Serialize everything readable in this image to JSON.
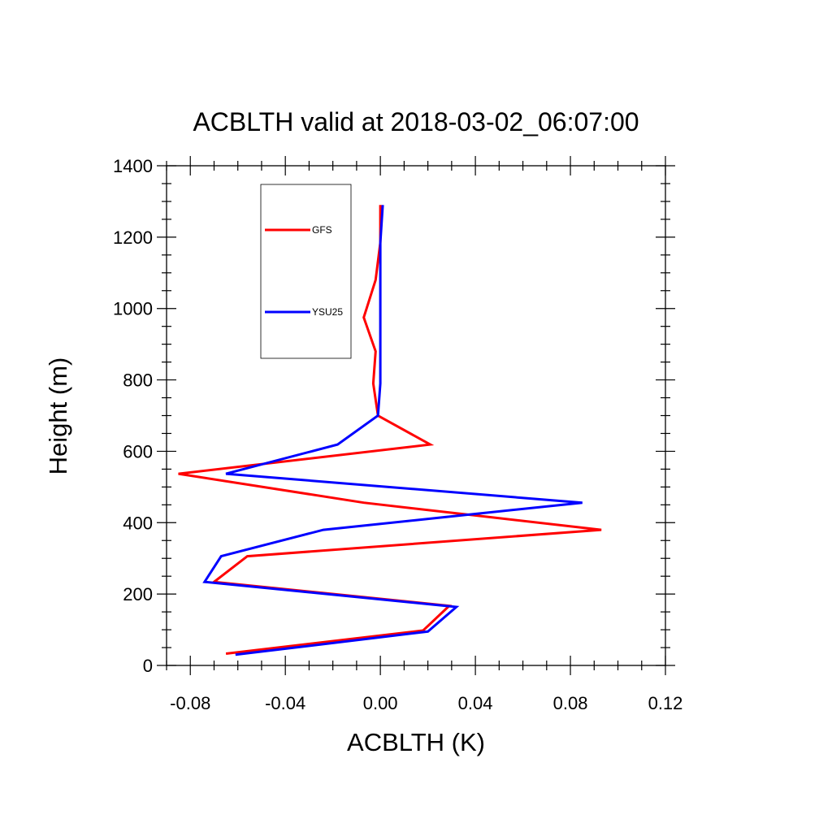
{
  "chart_data": {
    "type": "line",
    "title": "ACBLTH valid at 2018-03-02_06:07:00",
    "xlabel": "ACBLTH (K)",
    "ylabel": "Height (m)",
    "xlim": [
      -0.09,
      0.12
    ],
    "ylim": [
      0,
      1400
    ],
    "x_ticks": [
      -0.08,
      -0.04,
      0.0,
      0.04,
      0.08,
      0.12
    ],
    "x_tick_labels": [
      "-0.08",
      "-0.04",
      "0.00",
      "0.04",
      "0.08",
      "0.12"
    ],
    "y_ticks": [
      0,
      200,
      400,
      600,
      800,
      1000,
      1200,
      1400
    ],
    "y_tick_labels": [
      "0",
      "200",
      "400",
      "600",
      "800",
      "1000",
      "1200",
      "1400"
    ],
    "grid": false,
    "legend_position": "top-left",
    "series": [
      {
        "name": "GFS",
        "color": "#ff0000",
        "points": [
          {
            "x": -0.065,
            "y": 33
          },
          {
            "x": 0.018,
            "y": 98
          },
          {
            "x": 0.029,
            "y": 167
          },
          {
            "x": -0.07,
            "y": 234
          },
          {
            "x": -0.056,
            "y": 306
          },
          {
            "x": 0.093,
            "y": 380
          },
          {
            "x": -0.007,
            "y": 456
          },
          {
            "x": -0.085,
            "y": 537
          },
          {
            "x": 0.021,
            "y": 619
          },
          {
            "x": -0.001,
            "y": 700
          },
          {
            "x": -0.003,
            "y": 790
          },
          {
            "x": -0.002,
            "y": 880
          },
          {
            "x": -0.007,
            "y": 975
          },
          {
            "x": -0.002,
            "y": 1080
          },
          {
            "x": 0.0,
            "y": 1185
          },
          {
            "x": 0.0,
            "y": 1290
          }
        ]
      },
      {
        "name": "YSU25",
        "color": "#0000ff",
        "points": [
          {
            "x": -0.061,
            "y": 30
          },
          {
            "x": 0.02,
            "y": 95
          },
          {
            "x": 0.032,
            "y": 164
          },
          {
            "x": -0.074,
            "y": 234
          },
          {
            "x": -0.067,
            "y": 306
          },
          {
            "x": -0.024,
            "y": 380
          },
          {
            "x": 0.085,
            "y": 456
          },
          {
            "x": -0.065,
            "y": 537
          },
          {
            "x": -0.018,
            "y": 619
          },
          {
            "x": -0.001,
            "y": 700
          },
          {
            "x": 0.0,
            "y": 790
          },
          {
            "x": 0.0,
            "y": 880
          },
          {
            "x": 0.0,
            "y": 975
          },
          {
            "x": 0.0,
            "y": 1080
          },
          {
            "x": 0.0,
            "y": 1185
          },
          {
            "x": 0.001,
            "y": 1290
          }
        ]
      }
    ]
  }
}
